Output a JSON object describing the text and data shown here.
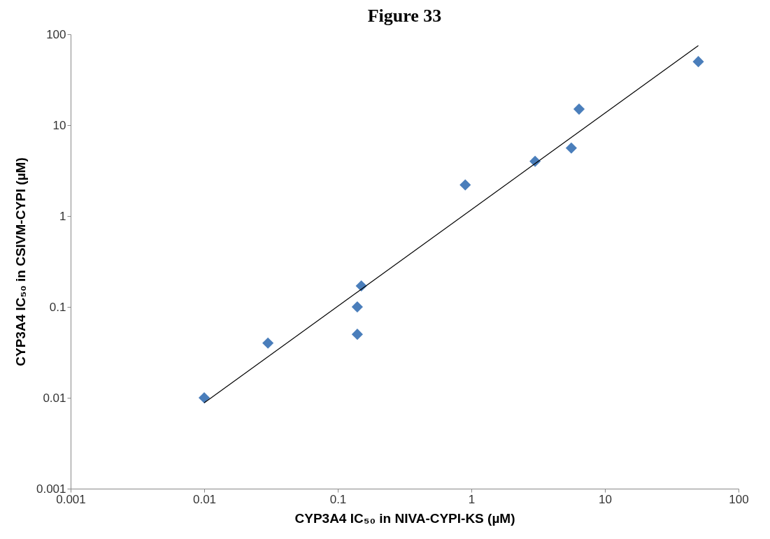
{
  "chart_data": {
    "type": "scatter",
    "title": "Figure 33",
    "xlabel": "CYP3A4 IC₅₀  in NIVA-CYPI-KS  (µM)",
    "ylabel": "CYP3A4 IC₅₀  in CSIVM-CYPI  (µM)",
    "log": "xy",
    "xlim": [
      0.001,
      100
    ],
    "ylim": [
      0.001,
      100
    ],
    "xticks": [
      0.001,
      0.01,
      0.1,
      1,
      10,
      100
    ],
    "yticks": [
      0.001,
      0.01,
      0.1,
      1,
      10,
      100
    ],
    "grid": false,
    "series": [
      {
        "color": "#4a7ebb",
        "marker": "diamond",
        "x": [
          0.01,
          0.03,
          0.14,
          0.14,
          0.15,
          0.9,
          3,
          5.6,
          6.4,
          50
        ],
        "values": [
          0.01,
          0.04,
          0.05,
          0.1,
          0.17,
          2.2,
          4,
          5.6,
          15,
          50
        ]
      },
      {
        "type": "line",
        "color": "#000000",
        "line_style": "solid",
        "marker": "none",
        "x": [
          0.01,
          50
        ],
        "values": [
          0.0088,
          75
        ]
      }
    ]
  }
}
